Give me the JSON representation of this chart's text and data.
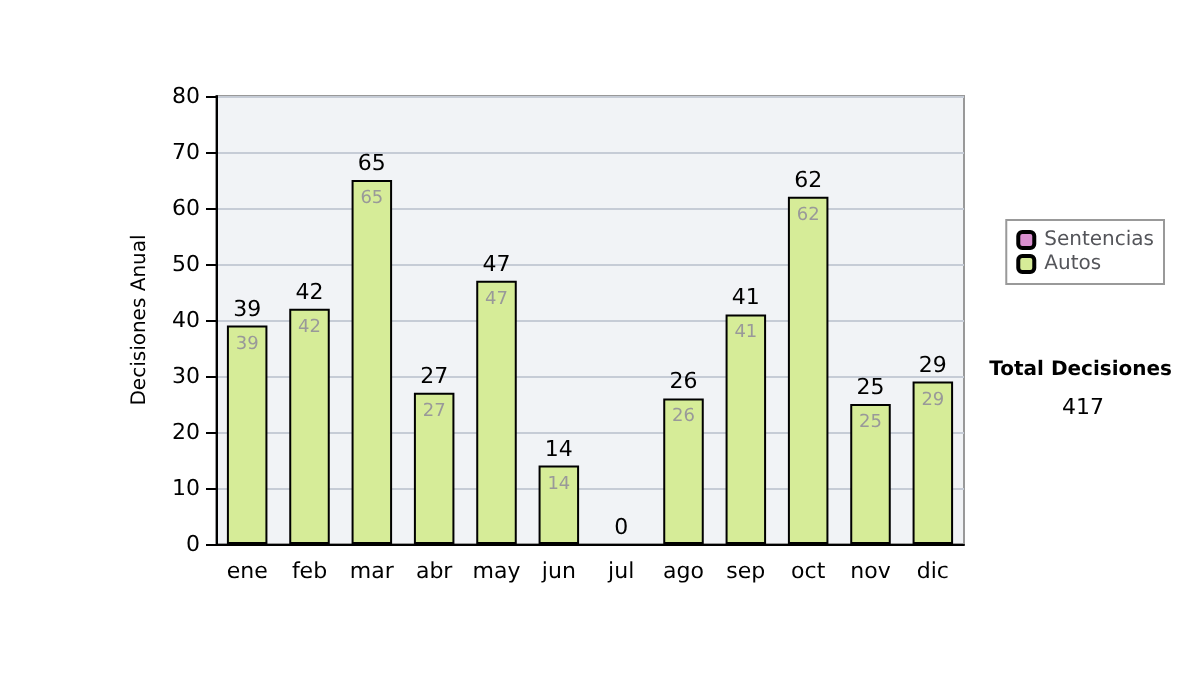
{
  "chart_data": {
    "type": "bar",
    "stacked": true,
    "ylabel": "Decisiones Anual",
    "categories": [
      "ene",
      "feb",
      "mar",
      "abr",
      "may",
      "jun",
      "jul",
      "ago",
      "sep",
      "oct",
      "nov",
      "dic"
    ],
    "series": [
      {
        "name": "Sentencias",
        "color": "#d98fcf",
        "values": [
          0,
          0,
          0,
          0,
          0,
          0,
          0,
          0,
          0,
          0,
          0,
          0
        ]
      },
      {
        "name": "Autos",
        "color": "#d6ec98",
        "values": [
          39,
          42,
          65,
          27,
          47,
          14,
          0,
          26,
          41,
          62,
          25,
          29
        ],
        "value_labels": [
          "39",
          "42",
          "65",
          "27",
          "47",
          "14",
          null,
          "26",
          "41",
          "62",
          "25",
          "29"
        ]
      }
    ],
    "totals": [
      "39",
      "42",
      "65",
      "27",
      "47",
      "14",
      "0",
      "26",
      "41",
      "62",
      "25",
      "29"
    ],
    "ylim": [
      0,
      80
    ],
    "yticks": [
      0,
      10,
      20,
      30,
      40,
      50,
      60,
      70,
      80
    ],
    "grid": "y",
    "legend": "right",
    "annotations": [
      "Total Decisiones",
      "417"
    ]
  }
}
